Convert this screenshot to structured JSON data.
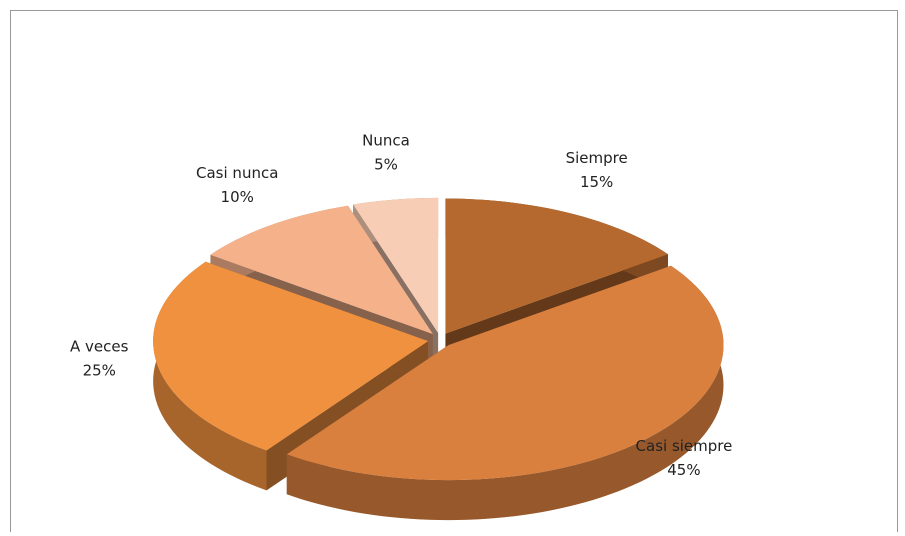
{
  "chart_data": {
    "type": "pie",
    "categories": [
      "Siempre",
      "Casi siempre",
      "A veces",
      "Casi nunca",
      "Nunca"
    ],
    "values": [
      15,
      45,
      25,
      10,
      5
    ],
    "value_labels": [
      "15%",
      "45%",
      "25%",
      "10%",
      "5%"
    ],
    "colors": [
      "#b5692e",
      "#d9803f",
      "#f0913f",
      "#f4b18a",
      "#f8cdb5"
    ]
  }
}
